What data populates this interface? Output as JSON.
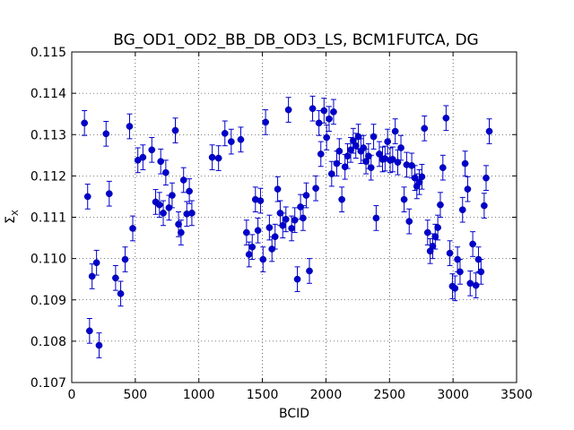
{
  "chart_data": {
    "type": "scatter",
    "title": "BG_OD1_OD2_BB_DB_OD3_LS, BCM1FUTCA, DG",
    "xlabel": "BCID",
    "ylabel": "Σ_X",
    "xlim": [
      0,
      3500
    ],
    "ylim": [
      0.107,
      0.115
    ],
    "x_ticks": [
      "0",
      "500",
      "1000",
      "1500",
      "2000",
      "2500",
      "3000",
      "3500"
    ],
    "y_ticks": [
      "0.107",
      "0.108",
      "0.109",
      "0.110",
      "0.111",
      "0.112",
      "0.113",
      "0.114",
      "0.115"
    ],
    "grid": true,
    "error_bar": 0.0003,
    "series": [
      {
        "color": "#0000cc",
        "points": [
          [
            100,
            0.11328
          ],
          [
            125,
            0.1115
          ],
          [
            140,
            0.10825
          ],
          [
            160,
            0.10957
          ],
          [
            195,
            0.1099
          ],
          [
            215,
            0.1079
          ],
          [
            270,
            0.11302
          ],
          [
            295,
            0.11157
          ],
          [
            345,
            0.10953
          ],
          [
            385,
            0.10915
          ],
          [
            420,
            0.10998
          ],
          [
            455,
            0.1132
          ],
          [
            480,
            0.11073
          ],
          [
            520,
            0.11238
          ],
          [
            560,
            0.11245
          ],
          [
            630,
            0.11263
          ],
          [
            660,
            0.11137
          ],
          [
            690,
            0.1113
          ],
          [
            700,
            0.11235
          ],
          [
            720,
            0.1111
          ],
          [
            740,
            0.11208
          ],
          [
            765,
            0.11123
          ],
          [
            790,
            0.11153
          ],
          [
            815,
            0.1131
          ],
          [
            840,
            0.11083
          ],
          [
            860,
            0.11063
          ],
          [
            880,
            0.1119
          ],
          [
            905,
            0.11108
          ],
          [
            925,
            0.11163
          ],
          [
            945,
            0.1111
          ],
          [
            1105,
            0.11245
          ],
          [
            1155,
            0.11243
          ],
          [
            1205,
            0.11303
          ],
          [
            1255,
            0.11283
          ],
          [
            1330,
            0.11288
          ],
          [
            1375,
            0.11063
          ],
          [
            1395,
            0.1101
          ],
          [
            1420,
            0.11028
          ],
          [
            1445,
            0.11143
          ],
          [
            1465,
            0.11068
          ],
          [
            1485,
            0.1114
          ],
          [
            1505,
            0.10998
          ],
          [
            1525,
            0.1133
          ],
          [
            1555,
            0.11075
          ],
          [
            1575,
            0.11023
          ],
          [
            1600,
            0.11053
          ],
          [
            1620,
            0.11168
          ],
          [
            1640,
            0.1111
          ],
          [
            1660,
            0.1108
          ],
          [
            1685,
            0.11095
          ],
          [
            1705,
            0.1136
          ],
          [
            1730,
            0.11073
          ],
          [
            1755,
            0.11093
          ],
          [
            1775,
            0.1095
          ],
          [
            1800,
            0.11125
          ],
          [
            1820,
            0.11098
          ],
          [
            1845,
            0.11153
          ],
          [
            1870,
            0.1097
          ],
          [
            1895,
            0.11363
          ],
          [
            1920,
            0.1117
          ],
          [
            1945,
            0.11328
          ],
          [
            1960,
            0.11253
          ],
          [
            1985,
            0.11358
          ],
          [
            2005,
            0.11293
          ],
          [
            2025,
            0.11338
          ],
          [
            2045,
            0.11205
          ],
          [
            2060,
            0.11355
          ],
          [
            2085,
            0.1123
          ],
          [
            2105,
            0.1126
          ],
          [
            2125,
            0.11143
          ],
          [
            2150,
            0.11222
          ],
          [
            2170,
            0.11248
          ],
          [
            2195,
            0.11263
          ],
          [
            2215,
            0.11285
          ],
          [
            2235,
            0.11273
          ],
          [
            2255,
            0.11295
          ],
          [
            2275,
            0.1126
          ],
          [
            2295,
            0.11268
          ],
          [
            2315,
            0.11235
          ],
          [
            2335,
            0.11248
          ],
          [
            2355,
            0.1122
          ],
          [
            2375,
            0.11295
          ],
          [
            2395,
            0.11098
          ],
          [
            2420,
            0.11253
          ],
          [
            2445,
            0.1124
          ],
          [
            2465,
            0.11242
          ],
          [
            2485,
            0.11283
          ],
          [
            2505,
            0.11238
          ],
          [
            2525,
            0.1124
          ],
          [
            2545,
            0.11308
          ],
          [
            2565,
            0.11233
          ],
          [
            2590,
            0.11268
          ],
          [
            2615,
            0.11143
          ],
          [
            2635,
            0.11227
          ],
          [
            2655,
            0.1109
          ],
          [
            2675,
            0.11225
          ],
          [
            2700,
            0.11195
          ],
          [
            2715,
            0.11175
          ],
          [
            2735,
            0.11185
          ],
          [
            2755,
            0.11198
          ],
          [
            2775,
            0.11315
          ],
          [
            2800,
            0.11063
          ],
          [
            2820,
            0.11018
          ],
          [
            2840,
            0.1103
          ],
          [
            2860,
            0.11053
          ],
          [
            2880,
            0.11075
          ],
          [
            2900,
            0.1113
          ],
          [
            2920,
            0.1122
          ],
          [
            2945,
            0.1134
          ],
          [
            2975,
            0.11013
          ],
          [
            2995,
            0.10933
          ],
          [
            3015,
            0.10928
          ],
          [
            3035,
            0.10998
          ],
          [
            3055,
            0.10968
          ],
          [
            3075,
            0.11118
          ],
          [
            3095,
            0.1123
          ],
          [
            3115,
            0.11168
          ],
          [
            3135,
            0.1094
          ],
          [
            3155,
            0.11035
          ],
          [
            3180,
            0.10935
          ],
          [
            3200,
            0.10998
          ],
          [
            3220,
            0.10968
          ],
          [
            3245,
            0.11128
          ],
          [
            3260,
            0.11195
          ],
          [
            3285,
            0.11308
          ]
        ]
      }
    ]
  }
}
